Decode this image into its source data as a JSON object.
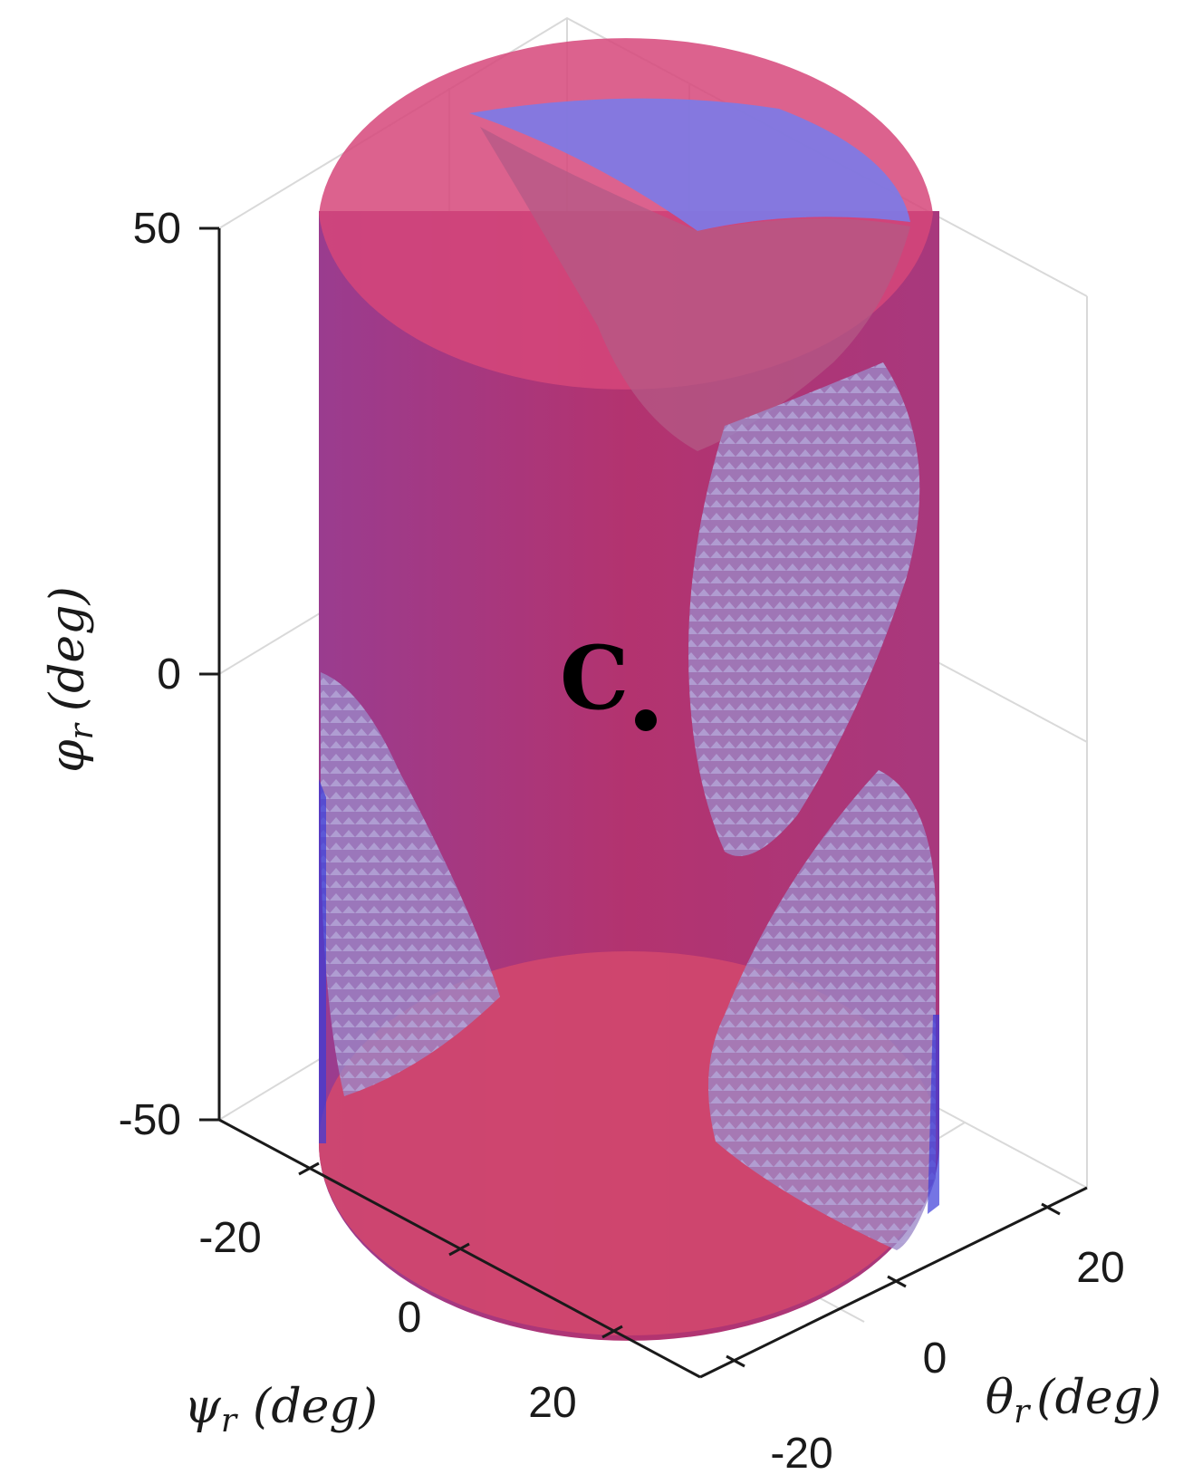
{
  "chart_data": {
    "type": "3d-surface",
    "title": "",
    "axes": {
      "x": {
        "label": "ψr (deg)",
        "symbol": "ψ",
        "sub": "r",
        "unit": "(deg)",
        "ticks": [
          -20,
          0,
          20
        ],
        "range": [
          -30,
          30
        ]
      },
      "y": {
        "label": "θr (deg)",
        "symbol": "θ",
        "sub": "r",
        "unit": "(deg)",
        "ticks": [
          -20,
          0,
          20
        ],
        "range": [
          -30,
          30
        ]
      },
      "z": {
        "label": "φr (deg)",
        "symbol": "φ",
        "sub": "r",
        "unit": "(deg)",
        "ticks": [
          -50,
          0,
          50
        ],
        "range": [
          -50,
          50
        ]
      }
    },
    "grid": true,
    "surfaces": [
      {
        "shape": "cylinder",
        "color": "#d1356a",
        "opacity": 0.85
      },
      {
        "shape": "cylinder",
        "color": "#5a5ae6",
        "opacity": 0.75
      },
      {
        "shape": "patch",
        "color": "#9a86c8",
        "opacity": 0.7
      }
    ],
    "annotations": [
      {
        "text": "C",
        "point": {
          "psi": 0,
          "theta": 0,
          "phi": -5
        }
      }
    ]
  }
}
